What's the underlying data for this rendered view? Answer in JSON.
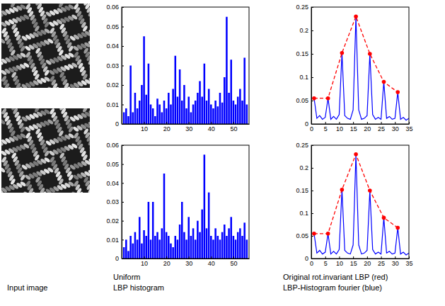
{
  "chart_data": [
    {
      "type": "bar",
      "color": "#0000ff",
      "x": [
        1,
        2,
        3,
        4,
        5,
        6,
        7,
        8,
        9,
        10,
        11,
        12,
        13,
        14,
        15,
        16,
        17,
        18,
        19,
        20,
        21,
        22,
        23,
        24,
        25,
        26,
        27,
        28,
        29,
        30,
        31,
        32,
        33,
        34,
        35,
        36,
        37,
        38,
        39,
        40,
        41,
        42,
        43,
        44,
        45,
        46,
        47,
        48,
        49,
        50,
        51,
        52,
        53,
        54,
        55,
        56
      ],
      "values": [
        0.006,
        0.008,
        0.004,
        0.03,
        0.006,
        0.016,
        0.008,
        0.012,
        0.02,
        0.045,
        0.015,
        0.031,
        0.01,
        0.008,
        0.004,
        0.013,
        0.01,
        0.006,
        0.012,
        0.008,
        0.016,
        0.01,
        0.018,
        0.035,
        0.014,
        0.028,
        0.012,
        0.02,
        0.008,
        0.014,
        0.006,
        0.01,
        0.012,
        0.016,
        0.022,
        0.014,
        0.031,
        0.012,
        0.018,
        0.01,
        0.008,
        0.012,
        0.009,
        0.016,
        0.011,
        0.024,
        0.055,
        0.016,
        0.033,
        0.012,
        0.01,
        0.014,
        0.018,
        0.012,
        0.034,
        0.01
      ],
      "xlim": [
        0,
        57
      ],
      "xticks": [
        10,
        20,
        30,
        40,
        50
      ],
      "ylim": [
        0,
        0.06
      ],
      "yticks": [
        0,
        0.01,
        0.02,
        0.03,
        0.04,
        0.05,
        0.06
      ]
    },
    {
      "type": "bar",
      "color": "#0000ff",
      "x": [
        1,
        2,
        3,
        4,
        5,
        6,
        7,
        8,
        9,
        10,
        11,
        12,
        13,
        14,
        15,
        16,
        17,
        18,
        19,
        20,
        21,
        22,
        23,
        24,
        25,
        26,
        27,
        28,
        29,
        30,
        31,
        32,
        33,
        34,
        35,
        36,
        37,
        38,
        39,
        40,
        41,
        42,
        43,
        44,
        45,
        46,
        47,
        48,
        49,
        50,
        51,
        52,
        53,
        54,
        55,
        56
      ],
      "values": [
        0.006,
        0.01,
        0.004,
        0.012,
        0.008,
        0.014,
        0.01,
        0.022,
        0.008,
        0.015,
        0.012,
        0.03,
        0.01,
        0.03,
        0.012,
        0.014,
        0.01,
        0.016,
        0.045,
        0.014,
        0.012,
        0.008,
        0.006,
        0.012,
        0.01,
        0.018,
        0.03,
        0.014,
        0.01,
        0.022,
        0.012,
        0.016,
        0.01,
        0.02,
        0.014,
        0.026,
        0.055,
        0.016,
        0.035,
        0.012,
        0.01,
        0.016,
        0.012,
        0.01,
        0.014,
        0.018,
        0.012,
        0.016,
        0.022,
        0.012,
        0.01,
        0.014,
        0.016,
        0.012,
        0.019,
        0.01
      ],
      "xlim": [
        0,
        57
      ],
      "xticks": [
        10,
        20,
        30,
        40,
        50
      ],
      "ylim": [
        0,
        0.06
      ],
      "yticks": [
        0,
        0.01,
        0.02,
        0.03,
        0.04,
        0.05,
        0.06
      ]
    },
    {
      "type": "line",
      "xlim": [
        0,
        35
      ],
      "xticks": [
        0,
        5,
        10,
        15,
        20,
        25,
        30,
        35
      ],
      "ylim": [
        0,
        0.25
      ],
      "yticks": [
        0,
        0.05,
        0.1,
        0.15,
        0.2,
        0.25
      ],
      "series": [
        {
          "color": "#0000ff",
          "line_style": "solid",
          "x": [
            1,
            2,
            3,
            4,
            5,
            6,
            7,
            8,
            9,
            10,
            11,
            12,
            13,
            14,
            15,
            16,
            17,
            18,
            19,
            20,
            21,
            22,
            23,
            24,
            25,
            26,
            27,
            28,
            29,
            30,
            31,
            32,
            33,
            34,
            35
          ],
          "values": [
            0.055,
            0.012,
            0.018,
            0.01,
            0.014,
            0.055,
            0.01,
            0.016,
            0.01,
            0.02,
            0.152,
            0.018,
            0.012,
            0.01,
            0.03,
            0.23,
            0.03,
            0.01,
            0.012,
            0.018,
            0.15,
            0.02,
            0.01,
            0.014,
            0.01,
            0.09,
            0.012,
            0.016,
            0.01,
            0.012,
            0.068,
            0.01,
            0.014,
            0.008,
            0.012
          ]
        },
        {
          "color": "#ff0000",
          "line_style": "dashed",
          "marker": "circle",
          "x": [
            1,
            6,
            11,
            16,
            21,
            26,
            31
          ],
          "values": [
            0.055,
            0.055,
            0.152,
            0.23,
            0.15,
            0.09,
            0.068
          ]
        }
      ]
    },
    {
      "type": "line",
      "xlim": [
        0,
        35
      ],
      "xticks": [
        0,
        5,
        10,
        15,
        20,
        25,
        30,
        35
      ],
      "ylim": [
        0,
        0.25
      ],
      "yticks": [
        0,
        0.05,
        0.1,
        0.15,
        0.2,
        0.25
      ],
      "series": [
        {
          "color": "#0000ff",
          "line_style": "solid",
          "x": [
            1,
            2,
            3,
            4,
            5,
            6,
            7,
            8,
            9,
            10,
            11,
            12,
            13,
            14,
            15,
            16,
            17,
            18,
            19,
            20,
            21,
            22,
            23,
            24,
            25,
            26,
            27,
            28,
            29,
            30,
            31,
            32,
            33,
            34,
            35
          ],
          "values": [
            0.055,
            0.012,
            0.018,
            0.01,
            0.014,
            0.055,
            0.01,
            0.016,
            0.01,
            0.02,
            0.152,
            0.018,
            0.012,
            0.01,
            0.03,
            0.23,
            0.03,
            0.01,
            0.012,
            0.018,
            0.15,
            0.02,
            0.01,
            0.014,
            0.01,
            0.09,
            0.012,
            0.016,
            0.01,
            0.012,
            0.068,
            0.01,
            0.014,
            0.008,
            0.012
          ]
        },
        {
          "color": "#ff0000",
          "line_style": "dashed",
          "marker": "circle",
          "x": [
            1,
            6,
            11,
            16,
            21,
            26,
            31
          ],
          "values": [
            0.055,
            0.055,
            0.152,
            0.23,
            0.15,
            0.09,
            0.068
          ]
        }
      ]
    }
  ],
  "captions": [
    [
      "Input image"
    ],
    [
      "Uniform",
      "LBP histogram"
    ],
    [
      "Original rot.invariant LBP (red)",
      "LBP-Histogram fourier (blue)"
    ]
  ]
}
